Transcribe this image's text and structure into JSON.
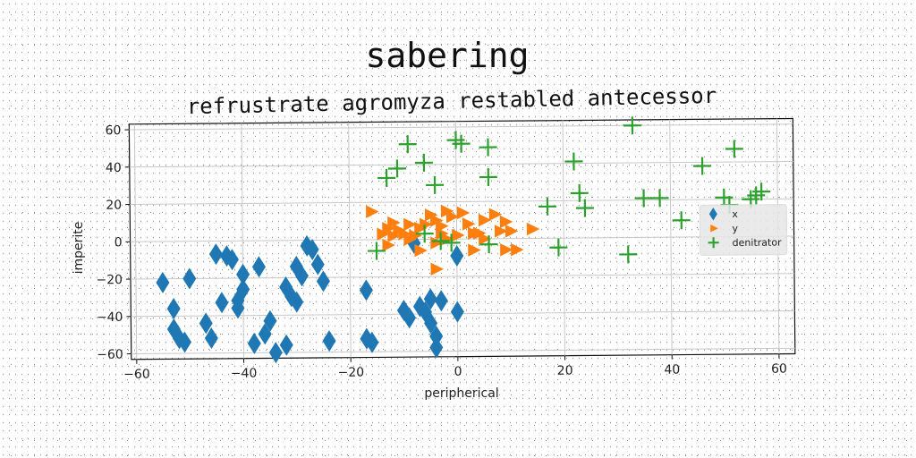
{
  "chart_data": {
    "type": "scatter",
    "title": "sabering",
    "subtitle": "refrustrate agromyza restabled antecessor",
    "xlabel": "peripherical",
    "ylabel": "imperite",
    "xlim": [
      -61,
      63
    ],
    "ylim": [
      -63,
      63
    ],
    "xticks": [
      -60,
      -40,
      -20,
      0,
      20,
      40,
      60
    ],
    "yticks": [
      -60,
      -40,
      -20,
      0,
      20,
      40,
      60
    ],
    "grid": true,
    "legend_position": "right",
    "series": [
      {
        "name": "x",
        "marker": "diamond",
        "color": "#1f77b4",
        "points": [
          [
            -55,
            -22
          ],
          [
            -53,
            -36
          ],
          [
            -53,
            -47
          ],
          [
            -52,
            -52
          ],
          [
            -51,
            -54
          ],
          [
            -50,
            -20
          ],
          [
            -47,
            -44
          ],
          [
            -46,
            -52
          ],
          [
            -45,
            -7
          ],
          [
            -44,
            -33
          ],
          [
            -43,
            -8
          ],
          [
            -42,
            -10
          ],
          [
            -41,
            -32
          ],
          [
            -41,
            -36
          ],
          [
            -40,
            -26
          ],
          [
            -40,
            -18
          ],
          [
            -38,
            -55
          ],
          [
            -37,
            -14
          ],
          [
            -36,
            -50
          ],
          [
            -35,
            -43
          ],
          [
            -34,
            -60
          ],
          [
            -32,
            -25
          ],
          [
            -32,
            -56
          ],
          [
            -31,
            -30
          ],
          [
            -30,
            -14
          ],
          [
            -30,
            -33
          ],
          [
            -29,
            -19
          ],
          [
            -28,
            -3
          ],
          [
            -27,
            -5
          ],
          [
            -26,
            -13
          ],
          [
            -25,
            -22
          ],
          [
            -24,
            -54
          ],
          [
            -17,
            -27
          ],
          [
            -17,
            -53
          ],
          [
            -16,
            -55
          ],
          [
            -10,
            -38
          ],
          [
            -9,
            -42
          ],
          [
            -8,
            -2
          ],
          [
            -7,
            -36
          ],
          [
            -6,
            -39
          ],
          [
            -5,
            -32
          ],
          [
            -5,
            -45
          ],
          [
            -4,
            -52
          ],
          [
            -4,
            -58
          ],
          [
            -3,
            -33
          ],
          [
            0,
            -9
          ],
          [
            0,
            -39
          ]
        ]
      },
      {
        "name": "y",
        "marker": "triangle-right",
        "color": "#ff7f0e",
        "points": [
          [
            -16,
            15
          ],
          [
            -14,
            3
          ],
          [
            -13,
            6
          ],
          [
            -13,
            -3
          ],
          [
            -12,
            9
          ],
          [
            -12,
            2
          ],
          [
            -11,
            5
          ],
          [
            -10,
            3
          ],
          [
            -9,
            0
          ],
          [
            -9,
            8
          ],
          [
            -8,
            2
          ],
          [
            -7,
            -6
          ],
          [
            -7,
            6
          ],
          [
            -6,
            8
          ],
          [
            -5,
            13
          ],
          [
            -4,
            10
          ],
          [
            -4,
            -2
          ],
          [
            -4,
            -16
          ],
          [
            -3,
            7
          ],
          [
            -3,
            3
          ],
          [
            -2,
            0
          ],
          [
            -2,
            15
          ],
          [
            -1,
            12
          ],
          [
            0,
            2
          ],
          [
            1,
            14
          ],
          [
            2,
            8
          ],
          [
            3,
            3
          ],
          [
            3,
            -6
          ],
          [
            4,
            3
          ],
          [
            5,
            0
          ],
          [
            5,
            10
          ],
          [
            7,
            13
          ],
          [
            8,
            4
          ],
          [
            9,
            9
          ],
          [
            9,
            -6
          ],
          [
            10,
            4
          ],
          [
            11,
            -6
          ],
          [
            14,
            5
          ]
        ]
      },
      {
        "name": "denitrator",
        "marker": "plus",
        "color": "#2ca02c",
        "points": [
          [
            -9,
            51
          ],
          [
            -11,
            38
          ],
          [
            -13,
            33
          ],
          [
            -6,
            41
          ],
          [
            -4,
            29
          ],
          [
            -6,
            3
          ],
          [
            -3,
            -1
          ],
          [
            -1,
            -2
          ],
          [
            0,
            53
          ],
          [
            1,
            51
          ],
          [
            6,
            49
          ],
          [
            6,
            33
          ],
          [
            6,
            -3
          ],
          [
            -15,
            -6
          ],
          [
            17,
            17
          ],
          [
            19,
            -5
          ],
          [
            22,
            41
          ],
          [
            23,
            24
          ],
          [
            24,
            16
          ],
          [
            32,
            -9
          ],
          [
            33,
            60
          ],
          [
            35,
            21
          ],
          [
            38,
            21
          ],
          [
            42,
            9
          ],
          [
            46,
            38
          ],
          [
            50,
            21
          ],
          [
            51,
            17
          ],
          [
            52,
            47
          ],
          [
            55,
            20
          ],
          [
            56,
            22
          ],
          [
            57,
            24
          ]
        ]
      }
    ]
  }
}
